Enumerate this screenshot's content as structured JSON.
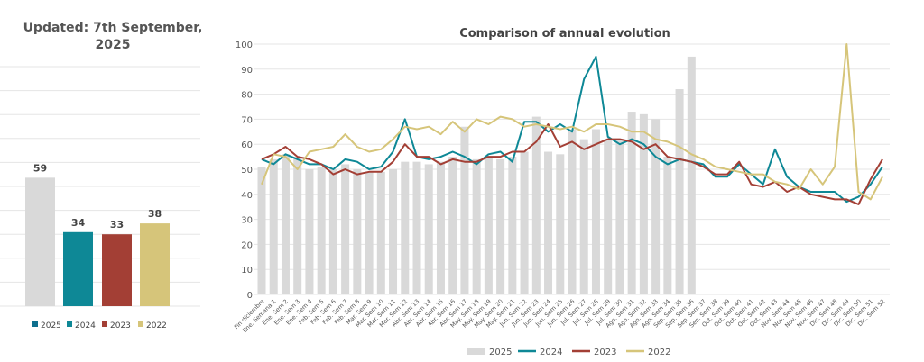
{
  "updated_label": "Updated: 7th September, 2025",
  "colors": {
    "2025": "#d9d9d9",
    "2024": "#0e8896",
    "2023": "#a33f35",
    "2022": "#d6c57a",
    "grid": "#e5e5e5"
  },
  "chart_data": [
    {
      "type": "bar",
      "title": "",
      "categories": [
        "2025",
        "2024",
        "2023",
        "2022"
      ],
      "values": [
        59,
        34,
        33,
        38
      ],
      "ylim": [
        0,
        110
      ],
      "grid": true,
      "legend": "bottom",
      "series_names": [
        "2025",
        "2024",
        "2023",
        "2022"
      ]
    },
    {
      "type": "line",
      "title": "Comparison of annual evolution",
      "xlabel": "",
      "ylabel": "",
      "ylim": [
        0,
        100
      ],
      "yticks": [
        0,
        10,
        20,
        30,
        40,
        50,
        60,
        70,
        80,
        90,
        100
      ],
      "grid": true,
      "legend": "bottom",
      "categories": [
        "Fin diciembre",
        "Ene. Semana 1",
        "Ene. Sem 2",
        "Ene. Sem 3",
        "Ene. Sem 4",
        "Feb. Sem 5",
        "Feb. Sem 6",
        "Feb. Sem 7",
        "Feb. Sem 8",
        "Mar. Sem 9",
        "Mar. Sem 10",
        "Mar. Sem 11",
        "Mar. Sem 12",
        "Abr. Sem 13",
        "Abr. Sem 14",
        "Abr. Sem 15",
        "Abr. Sem 16",
        "Abr. Sem 17",
        "May. Sem 18",
        "May. Sem 19",
        "May. Sem 20",
        "May. Sem 21",
        "Jun. Sem 22",
        "Jun. Sem 23",
        "Jun. Sem 24",
        "Jun. Sem 25",
        "Jun. Sem 26",
        "Jul. Sem 27",
        "Jul. Sem 28",
        "Jul. Sem 29",
        "Jul. Sem 30",
        "Ago. Sem 31",
        "Ago. Sem 32",
        "Ago. Sem 33",
        "Ago. Sem 34",
        "Sep. Sem 35",
        "Sep. Sem 36",
        "Sep. Sem 37",
        "Sep. Sem 38",
        "Oct. Sem 39",
        "Oct. Sem 40",
        "Oct. Sem 41",
        "Oct. Sem 42",
        "Oct. Sem 43",
        "Nov. Sem 44",
        "Nov. Sem 45",
        "Nov. Sem 46",
        "Nov. Sem 47",
        "Dic. Sem 48",
        "Dic. Sem 49",
        "Dic. Sem 50",
        "Dic. Sem 51",
        "Dic. Sem 52"
      ],
      "series": [
        {
          "name": "2025",
          "kind": "bar",
          "values": [
            51,
            54,
            56,
            55,
            50,
            51,
            50,
            52,
            50,
            49,
            49,
            50,
            53,
            53,
            52,
            53,
            55,
            67,
            54,
            55,
            54,
            55,
            57,
            71,
            57,
            56,
            66,
            62,
            66,
            62,
            62,
            73,
            72,
            70,
            55,
            82,
            95,
            null,
            null,
            null,
            null,
            null,
            null,
            null,
            null,
            null,
            null,
            null,
            null,
            null,
            null,
            null,
            null
          ]
        },
        {
          "name": "2024",
          "kind": "line",
          "values": [
            54,
            52,
            56,
            54,
            52,
            52,
            50,
            54,
            53,
            50,
            51,
            57,
            70,
            55,
            54,
            55,
            57,
            55,
            52,
            56,
            57,
            53,
            69,
            69,
            65,
            68,
            65,
            86,
            95,
            63,
            60,
            62,
            60,
            55,
            52,
            54,
            53,
            52,
            47,
            47,
            52,
            48,
            44,
            58,
            47,
            43,
            41,
            41,
            41,
            37,
            39,
            44,
            51
          ]
        },
        {
          "name": "2023",
          "kind": "line",
          "values": [
            54,
            56,
            59,
            55,
            54,
            52,
            48,
            50,
            48,
            49,
            49,
            53,
            60,
            55,
            55,
            52,
            54,
            53,
            53,
            55,
            55,
            57,
            57,
            61,
            68,
            59,
            61,
            58,
            60,
            62,
            62,
            61,
            58,
            60,
            55,
            54,
            53,
            51,
            48,
            48,
            53,
            44,
            43,
            45,
            41,
            43,
            40,
            39,
            38,
            38,
            36,
            46,
            54
          ]
        },
        {
          "name": "2022",
          "kind": "line",
          "values": [
            44,
            56,
            55,
            50,
            57,
            58,
            59,
            64,
            59,
            57,
            58,
            62,
            67,
            66,
            67,
            64,
            69,
            65,
            70,
            68,
            71,
            70,
            67,
            68,
            67,
            66,
            67,
            65,
            68,
            68,
            67,
            65,
            65,
            62,
            61,
            59,
            56,
            54,
            51,
            50,
            49,
            48,
            48,
            45,
            44,
            42,
            50,
            44,
            51,
            100,
            41,
            38,
            47
          ]
        }
      ]
    }
  ]
}
